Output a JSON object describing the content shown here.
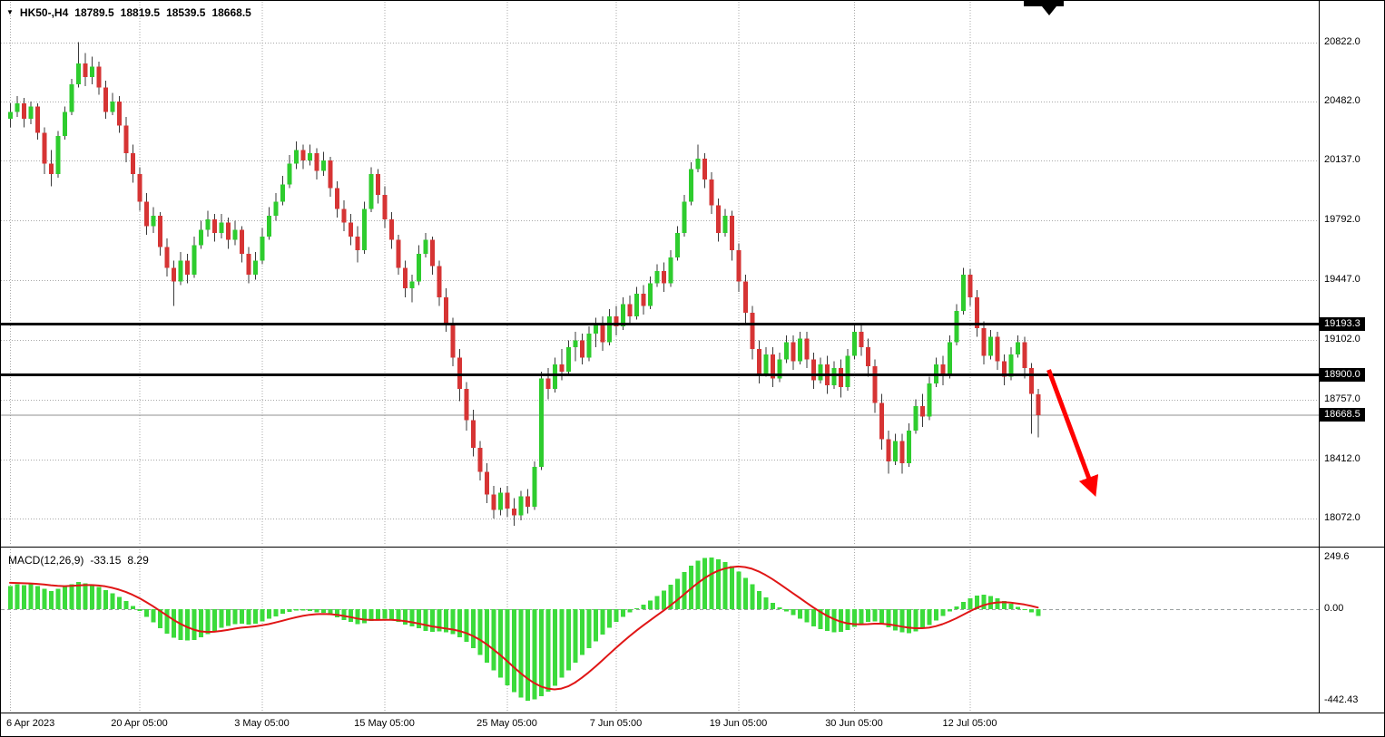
{
  "header": {
    "symbol": "HK50-,H4",
    "open": "18789.5",
    "high": "18819.5",
    "low": "18539.5",
    "close": "18668.5"
  },
  "chart_data": {
    "type": "candlestick",
    "title": "HK50-,H4",
    "price_range": [
      17935,
      20930
    ],
    "macd_range": [
      -500,
      290
    ],
    "grid": true,
    "y_ticks": [
      "20822.0",
      "20482.0",
      "20137.0",
      "19792.0",
      "19447.0",
      "19102.0",
      "18757.0",
      "18412.0",
      "18072.0"
    ],
    "x_ticks": [
      {
        "bar": 0,
        "label": "6 Apr 2023"
      },
      {
        "bar": 19,
        "label": "20 Apr 05:00"
      },
      {
        "bar": 37,
        "label": "3 May 05:00"
      },
      {
        "bar": 55,
        "label": "15 May 05:00"
      },
      {
        "bar": 73,
        "label": "25 May 05:00"
      },
      {
        "bar": 89,
        "label": "7 Jun 05:00"
      },
      {
        "bar": 107,
        "label": "19 Jun 05:00"
      },
      {
        "bar": 124,
        "label": "30 Jun 05:00"
      },
      {
        "bar": 141,
        "label": "12 Jul 05:00"
      }
    ],
    "price_lines": [
      {
        "price": 19193.3,
        "label": "19193.3"
      },
      {
        "price": 18900.0,
        "label": "18900.0"
      }
    ],
    "current_price": {
      "price": 18668.5,
      "label": "18668.5"
    },
    "trend_arrow": {
      "from": {
        "bar": 152.6,
        "price": 18930
      },
      "to": {
        "bar": 159.2,
        "price": 18230
      }
    },
    "colors": {
      "bull": "#2ecc2e",
      "bear": "#d63434",
      "wick": "#3a3a3a",
      "grid": "#a8a8a8",
      "hline": "#000000",
      "current_price_line": "#909090",
      "badge_bg": "#000000",
      "badge_fg": "#ffffff",
      "macd_hist": "#3bdb3b",
      "macd_signal": "#e01616",
      "macd_zero": "#9aa0a0",
      "arrow": "#ff0000"
    },
    "candles": [
      [
        20380,
        20470,
        20330,
        20420
      ],
      [
        20420,
        20510,
        20390,
        20470
      ],
      [
        20470,
        20500,
        20330,
        20380
      ],
      [
        20380,
        20480,
        20350,
        20450
      ],
      [
        20450,
        20470,
        20260,
        20300
      ],
      [
        20300,
        20330,
        20060,
        20120
      ],
      [
        20120,
        20200,
        19990,
        20060
      ],
      [
        20060,
        20310,
        20040,
        20280
      ],
      [
        20280,
        20450,
        20260,
        20420
      ],
      [
        20420,
        20610,
        20400,
        20580
      ],
      [
        20580,
        20822,
        20560,
        20700
      ],
      [
        20700,
        20760,
        20570,
        20620
      ],
      [
        20620,
        20740,
        20580,
        20680
      ],
      [
        20680,
        20710,
        20520,
        20560
      ],
      [
        20560,
        20600,
        20380,
        20420
      ],
      [
        20420,
        20530,
        20400,
        20480
      ],
      [
        20480,
        20510,
        20300,
        20340
      ],
      [
        20340,
        20390,
        20130,
        20180
      ],
      [
        20180,
        20230,
        20010,
        20060
      ],
      [
        20060,
        20100,
        19850,
        19900
      ],
      [
        19900,
        19950,
        19710,
        19760
      ],
      [
        19760,
        19870,
        19720,
        19820
      ],
      [
        19820,
        19840,
        19590,
        19640
      ],
      [
        19640,
        19690,
        19470,
        19520
      ],
      [
        19520,
        19560,
        19300,
        19440
      ],
      [
        19440,
        19610,
        19420,
        19560
      ],
      [
        19560,
        19600,
        19430,
        19480
      ],
      [
        19480,
        19700,
        19460,
        19650
      ],
      [
        19650,
        19790,
        19630,
        19740
      ],
      [
        19740,
        19850,
        19700,
        19800
      ],
      [
        19800,
        19830,
        19670,
        19720
      ],
      [
        19720,
        19830,
        19690,
        19780
      ],
      [
        19780,
        19810,
        19630,
        19680
      ],
      [
        19680,
        19790,
        19650,
        19740
      ],
      [
        19740,
        19760,
        19550,
        19600
      ],
      [
        19600,
        19640,
        19430,
        19480
      ],
      [
        19480,
        19610,
        19450,
        19560
      ],
      [
        19560,
        19750,
        19540,
        19700
      ],
      [
        19700,
        19870,
        19680,
        19820
      ],
      [
        19820,
        19950,
        19790,
        19900
      ],
      [
        19900,
        20050,
        19880,
        20000
      ],
      [
        20000,
        20170,
        19980,
        20120
      ],
      [
        20120,
        20250,
        20090,
        20200
      ],
      [
        20200,
        20230,
        20090,
        20140
      ],
      [
        20140,
        20230,
        20110,
        20180
      ],
      [
        20180,
        20210,
        20030,
        20080
      ],
      [
        20080,
        20190,
        20050,
        20140
      ],
      [
        20140,
        20160,
        19930,
        19980
      ],
      [
        19980,
        20020,
        19810,
        19860
      ],
      [
        19860,
        19910,
        19730,
        19780
      ],
      [
        19780,
        19830,
        19650,
        19700
      ],
      [
        19700,
        19760,
        19550,
        19620
      ],
      [
        19620,
        19900,
        19600,
        19860
      ],
      [
        19860,
        20100,
        19840,
        20060
      ],
      [
        20060,
        20090,
        19890,
        19940
      ],
      [
        19940,
        19990,
        19750,
        19800
      ],
      [
        19800,
        19840,
        19630,
        19680
      ],
      [
        19680,
        19710,
        19480,
        19520
      ],
      [
        19520,
        19560,
        19350,
        19400
      ],
      [
        19400,
        19480,
        19320,
        19440
      ],
      [
        19440,
        19650,
        19420,
        19600
      ],
      [
        19600,
        19720,
        19580,
        19680
      ],
      [
        19680,
        19700,
        19480,
        19530
      ],
      [
        19530,
        19560,
        19300,
        19350
      ],
      [
        19350,
        19400,
        19150,
        19200
      ],
      [
        19200,
        19230,
        18950,
        19000
      ],
      [
        19000,
        19050,
        18750,
        18820
      ],
      [
        18820,
        18860,
        18580,
        18640
      ],
      [
        18640,
        18700,
        18430,
        18480
      ],
      [
        18480,
        18520,
        18290,
        18340
      ],
      [
        18340,
        18390,
        18160,
        18210
      ],
      [
        18210,
        18260,
        18070,
        18120
      ],
      [
        18120,
        18250,
        18090,
        18220
      ],
      [
        18220,
        18260,
        18080,
        18130
      ],
      [
        18130,
        18190,
        18030,
        18090
      ],
      [
        18090,
        18230,
        18060,
        18200
      ],
      [
        18200,
        18240,
        18100,
        18140
      ],
      [
        18140,
        18400,
        18120,
        18370
      ],
      [
        18370,
        18920,
        18350,
        18880
      ],
      [
        18880,
        18940,
        18760,
        18820
      ],
      [
        18820,
        19000,
        18800,
        18960
      ],
      [
        18960,
        19050,
        18870,
        18920
      ],
      [
        18920,
        19100,
        18900,
        19060
      ],
      [
        19060,
        19150,
        18980,
        19100
      ],
      [
        19100,
        19140,
        18960,
        19000
      ],
      [
        19000,
        19180,
        18980,
        19140
      ],
      [
        19140,
        19230,
        19060,
        19190
      ],
      [
        19190,
        19240,
        19040,
        19090
      ],
      [
        19090,
        19280,
        19070,
        19240
      ],
      [
        19240,
        19300,
        19130,
        19180
      ],
      [
        19180,
        19350,
        19160,
        19310
      ],
      [
        19310,
        19360,
        19190,
        19240
      ],
      [
        19240,
        19410,
        19220,
        19370
      ],
      [
        19370,
        19420,
        19250,
        19300
      ],
      [
        19300,
        19470,
        19280,
        19430
      ],
      [
        19430,
        19540,
        19410,
        19500
      ],
      [
        19500,
        19550,
        19380,
        19430
      ],
      [
        19430,
        19620,
        19410,
        19580
      ],
      [
        19580,
        19760,
        19560,
        19720
      ],
      [
        19720,
        19940,
        19700,
        19900
      ],
      [
        19900,
        20130,
        19880,
        20090
      ],
      [
        20090,
        20230,
        20070,
        20150
      ],
      [
        20150,
        20180,
        19980,
        20030
      ],
      [
        20030,
        20070,
        19830,
        19880
      ],
      [
        19880,
        19920,
        19670,
        19720
      ],
      [
        19720,
        19860,
        19700,
        19820
      ],
      [
        19820,
        19850,
        19560,
        19620
      ],
      [
        19620,
        19660,
        19380,
        19440
      ],
      [
        19440,
        19480,
        19200,
        19260
      ],
      [
        19260,
        19300,
        18990,
        19050
      ],
      [
        19050,
        19100,
        18850,
        18910
      ],
      [
        18910,
        19060,
        18890,
        19020
      ],
      [
        19020,
        19060,
        18830,
        18880
      ],
      [
        18880,
        19030,
        18860,
        18990
      ],
      [
        18990,
        19130,
        18970,
        19090
      ],
      [
        19090,
        19130,
        18930,
        18980
      ],
      [
        18980,
        19150,
        18960,
        19110
      ],
      [
        19110,
        19150,
        18940,
        18990
      ],
      [
        18990,
        19030,
        18820,
        18870
      ],
      [
        18870,
        19000,
        18850,
        18960
      ],
      [
        18960,
        19010,
        18790,
        18840
      ],
      [
        18840,
        18980,
        18820,
        18940
      ],
      [
        18940,
        18990,
        18770,
        18830
      ],
      [
        18830,
        19050,
        18810,
        19010
      ],
      [
        19010,
        19190,
        18990,
        19150
      ],
      [
        19150,
        19200,
        19010,
        19060
      ],
      [
        19060,
        19110,
        18890,
        18950
      ],
      [
        18950,
        18990,
        18680,
        18740
      ],
      [
        18740,
        18790,
        18470,
        18530
      ],
      [
        18530,
        18580,
        18330,
        18400
      ],
      [
        18400,
        18560,
        18380,
        18520
      ],
      [
        18520,
        18560,
        18330,
        18390
      ],
      [
        18390,
        18620,
        18370,
        18580
      ],
      [
        18580,
        18760,
        18560,
        18720
      ],
      [
        18720,
        18790,
        18600,
        18660
      ],
      [
        18660,
        18890,
        18640,
        18850
      ],
      [
        18850,
        19000,
        18830,
        18960
      ],
      [
        18960,
        19010,
        18840,
        18900
      ],
      [
        18900,
        19130,
        18880,
        19090
      ],
      [
        19090,
        19310,
        19070,
        19270
      ],
      [
        19270,
        19520,
        19250,
        19480
      ],
      [
        19480,
        19510,
        19300,
        19350
      ],
      [
        19350,
        19390,
        19120,
        19170
      ],
      [
        19170,
        19210,
        18960,
        19010
      ],
      [
        19010,
        19160,
        18990,
        19120
      ],
      [
        19120,
        19150,
        18930,
        18980
      ],
      [
        18980,
        19020,
        18840,
        18890
      ],
      [
        18890,
        19060,
        18870,
        19020
      ],
      [
        19020,
        19130,
        19000,
        19090
      ],
      [
        19090,
        19120,
        18880,
        18940
      ],
      [
        18940,
        18970,
        18560,
        18790
      ],
      [
        18789.5,
        18819.5,
        18539.5,
        18668.5
      ]
    ],
    "macd": {
      "label": "MACD(12,26,9)",
      "main_value": "-33.15",
      "signal_value": "8.29",
      "y_ticks": [
        {
          "v": 249.6,
          "label": "249.6"
        },
        {
          "v": 0,
          "label": "0.00"
        },
        {
          "v": -442.43,
          "label": "-442.43"
        }
      ],
      "histogram": [
        112,
        120,
        116,
        122,
        112,
        98,
        88,
        98,
        110,
        122,
        132,
        126,
        120,
        108,
        92,
        78,
        60,
        40,
        16,
        -8,
        -38,
        -64,
        -92,
        -118,
        -138,
        -148,
        -152,
        -148,
        -136,
        -120,
        -104,
        -90,
        -80,
        -72,
        -70,
        -74,
        -70,
        -60,
        -46,
        -34,
        -22,
        -12,
        -6,
        -6,
        -8,
        -14,
        -18,
        -28,
        -40,
        -52,
        -62,
        -72,
        -68,
        -56,
        -48,
        -46,
        -52,
        -62,
        -74,
        -84,
        -92,
        -104,
        -110,
        -108,
        -112,
        -120,
        -135,
        -158,
        -188,
        -222,
        -258,
        -295,
        -330,
        -368,
        -402,
        -428,
        -442,
        -436,
        -420,
        -398,
        -370,
        -332,
        -295,
        -258,
        -222,
        -188,
        -155,
        -122,
        -90,
        -62,
        -38,
        -16,
        4,
        22,
        42,
        65,
        90,
        118,
        148,
        180,
        210,
        235,
        248,
        250,
        242,
        228,
        208,
        182,
        152,
        120,
        88,
        58,
        32,
        10,
        -10,
        -28,
        -46,
        -64,
        -82,
        -96,
        -106,
        -112,
        -110,
        -100,
        -86,
        -72,
        -62,
        -60,
        -70,
        -88,
        -102,
        -112,
        -115,
        -108,
        -94,
        -76,
        -55,
        -32,
        -10,
        14,
        36,
        54,
        66,
        70,
        65,
        54,
        40,
        26,
        12,
        0,
        -14,
        -33.15
      ],
      "signal": [
        128,
        127,
        126,
        125,
        123,
        120,
        116,
        113,
        112,
        113,
        115,
        117,
        117,
        115,
        111,
        104,
        95,
        84,
        70,
        54,
        35,
        15,
        -7,
        -29,
        -51,
        -70,
        -86,
        -99,
        -107,
        -110,
        -109,
        -105,
        -100,
        -94,
        -89,
        -86,
        -83,
        -78,
        -72,
        -64,
        -56,
        -47,
        -39,
        -32,
        -27,
        -24,
        -23,
        -24,
        -27,
        -32,
        -38,
        -45,
        -50,
        -52,
        -52,
        -51,
        -51,
        -53,
        -57,
        -63,
        -69,
        -76,
        -83,
        -88,
        -93,
        -98,
        -105,
        -115,
        -129,
        -147,
        -169,
        -194,
        -221,
        -250,
        -280,
        -309,
        -335,
        -357,
        -374,
        -384,
        -388,
        -384,
        -373,
        -355,
        -332,
        -306,
        -278,
        -248,
        -218,
        -188,
        -159,
        -131,
        -104,
        -79,
        -55,
        -31,
        -7,
        18,
        44,
        71,
        99,
        126,
        150,
        170,
        186,
        197,
        204,
        207,
        204,
        196,
        183,
        166,
        146,
        124,
        101,
        78,
        55,
        32,
        9,
        -12,
        -31,
        -47,
        -60,
        -68,
        -72,
        -73,
        -72,
        -70,
        -70,
        -73,
        -78,
        -84,
        -89,
        -92,
        -92,
        -89,
        -82,
        -72,
        -59,
        -44,
        -27,
        -10,
        6,
        19,
        28,
        33,
        34,
        32,
        28,
        23,
        16,
        8.29
      ]
    }
  }
}
